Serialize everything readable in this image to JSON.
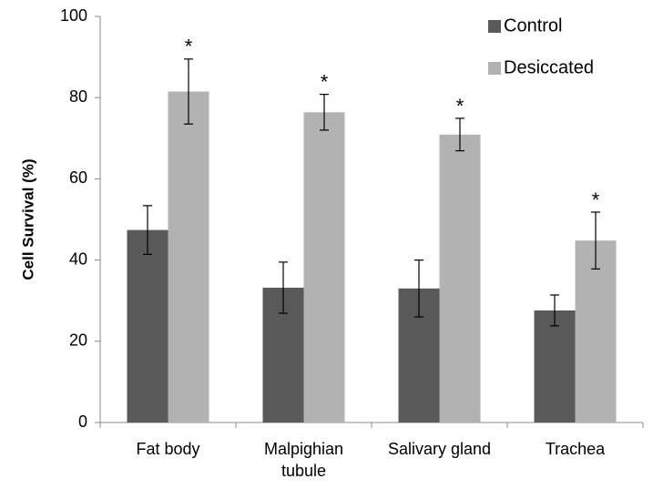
{
  "chart_data": {
    "type": "bar",
    "ylabel": "Cell Survival (%)",
    "categories": [
      "Fat body",
      "Malpighian tubule",
      "Salivary gland",
      "Trachea"
    ],
    "series": [
      {
        "name": "Control",
        "color": "#595959",
        "values": [
          47.4,
          33.2,
          33,
          27.6
        ],
        "errors": [
          6,
          6.3,
          7,
          3.8
        ]
      },
      {
        "name": "Desiccated",
        "color": "#b2b2b2",
        "values": [
          81.5,
          76.4,
          70.9,
          44.8
        ],
        "errors": [
          8,
          4.4,
          4,
          7
        ],
        "annotations": [
          "*",
          "*",
          "*",
          "*"
        ]
      }
    ],
    "ylim": [
      0,
      100
    ],
    "yticks": [
      0,
      20,
      40,
      60,
      80,
      100
    ],
    "grid": false,
    "legend": "top-right"
  }
}
